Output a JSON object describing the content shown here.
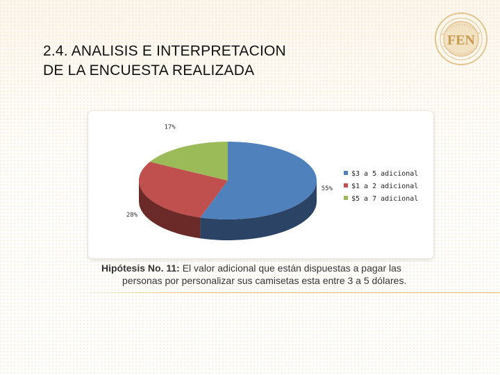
{
  "slide": {
    "title_line1": "2.4. ANALISIS E INTERPRETACION",
    "title_line2": "DE LA ENCUESTA REALIZADA",
    "logo_text": "FEN",
    "caption_bold": "Hipótesis No. 11:",
    "caption_text_1": " El valor adicional que están dispuestas a pagar las",
    "caption_text_2": "personas por personalizar sus camisetas esta entre 3 a 5 dólares."
  },
  "chart_data": {
    "type": "pie",
    "title": "",
    "categories": [
      "$3 a 5 adicional",
      "$1 a 2 adicional",
      "$5 a 7 adicional"
    ],
    "values": [
      55,
      28,
      17
    ],
    "labels": [
      "55%",
      "28%",
      "17%"
    ],
    "colors": [
      "#4f81bd",
      "#c0504d",
      "#9bbb59"
    ],
    "dark_colors": [
      "#2b4466",
      "#6b2a28",
      "#5a6e31"
    ],
    "three_d": true,
    "legend_position": "right"
  }
}
